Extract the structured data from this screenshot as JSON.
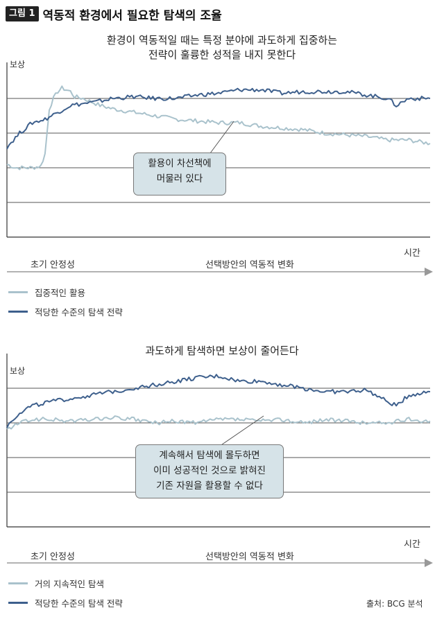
{
  "figure": {
    "badge": "그림 1",
    "title": "역동적 환경에서 필요한 탐색의 조율",
    "source": "출처: BCG 분석"
  },
  "colors": {
    "dark_series": "#3d5f8c",
    "light_series": "#a9c2cc",
    "grid": "#555555",
    "callout_bg": "#d6e3e8"
  },
  "chart_data": [
    {
      "type": "line",
      "title": "환경이 역동적일 때는 특정 분야에 과도하게 집중하는\n전략이 훌륭한 성적을 내지 못한다",
      "ylabel": "보상",
      "xlabel": "시간",
      "phases": [
        "초기 안정성",
        "선택방안의 역동적 변화"
      ],
      "ylim": [
        0,
        5
      ],
      "xlim": [
        0,
        100
      ],
      "grid": true,
      "annotation": "활용이 차선책에\n머물러 있다",
      "series": [
        {
          "name": "집중적인 활용",
          "x": [
            0,
            2,
            4,
            6,
            8,
            9,
            10,
            11,
            12,
            13,
            14,
            15,
            16,
            18,
            20,
            22,
            25,
            30,
            35,
            40,
            45,
            50,
            55,
            60,
            65,
            70,
            75,
            80,
            85,
            90,
            95,
            100
          ],
          "y": [
            2.1,
            2.0,
            2.0,
            2.0,
            2.05,
            2.4,
            3.7,
            4.0,
            4.2,
            4.3,
            4.25,
            4.2,
            4.05,
            4.0,
            3.9,
            3.8,
            3.7,
            3.6,
            3.5,
            3.4,
            3.35,
            3.3,
            3.3,
            3.2,
            3.15,
            3.1,
            3.0,
            2.95,
            2.9,
            2.8,
            2.8,
            2.7
          ]
        },
        {
          "name": "적당한 수준의 탐색 전략",
          "x": [
            0,
            3,
            6,
            9,
            12,
            15,
            18,
            21,
            25,
            30,
            35,
            40,
            45,
            50,
            55,
            60,
            65,
            70,
            75,
            80,
            85,
            90,
            92,
            95,
            100
          ],
          "y": [
            2.6,
            3.0,
            3.3,
            3.4,
            3.6,
            3.8,
            3.85,
            3.9,
            4.0,
            4.05,
            4.0,
            4.0,
            4.1,
            4.15,
            4.25,
            4.25,
            4.15,
            4.2,
            4.2,
            4.2,
            4.1,
            4.0,
            3.8,
            4.0,
            4.0
          ]
        }
      ]
    },
    {
      "type": "line",
      "title": "과도하게 탐색하면 보상이 줄어든다",
      "ylabel": "보상",
      "xlabel": "시간",
      "phases": [
        "초기 안정성",
        "선택방안의 역동적 변화"
      ],
      "ylim": [
        0,
        5
      ],
      "xlim": [
        0,
        100
      ],
      "grid": true,
      "annotation": "계속해서 탐색에 몰두하면\n이미 성공적인 것으로 밝혀진\n기존 자원을 활용할 수 없다",
      "series": [
        {
          "name": "거의 지속적인 탐색",
          "x": [
            0,
            3,
            6,
            10,
            15,
            20,
            25,
            30,
            35,
            40,
            45,
            50,
            55,
            60,
            65,
            70,
            75,
            80,
            85,
            90,
            95,
            100
          ],
          "y": [
            2.8,
            3.0,
            3.1,
            3.1,
            3.05,
            3.1,
            3.15,
            3.1,
            3.0,
            3.05,
            3.0,
            3.1,
            3.1,
            3.05,
            3.1,
            3.0,
            3.1,
            3.05,
            3.0,
            3.0,
            3.1,
            3.05
          ]
        },
        {
          "name": "적당한 수준의 탐색 전략",
          "x": [
            0,
            3,
            6,
            10,
            15,
            20,
            25,
            30,
            35,
            40,
            45,
            50,
            55,
            60,
            65,
            70,
            75,
            80,
            85,
            90,
            92,
            95,
            100
          ],
          "y": [
            2.9,
            3.3,
            3.5,
            3.6,
            3.7,
            3.8,
            3.9,
            4.0,
            4.1,
            4.2,
            4.3,
            4.35,
            4.2,
            4.2,
            4.1,
            4.0,
            3.9,
            3.9,
            3.95,
            3.6,
            3.5,
            3.8,
            3.9
          ]
        }
      ]
    }
  ]
}
